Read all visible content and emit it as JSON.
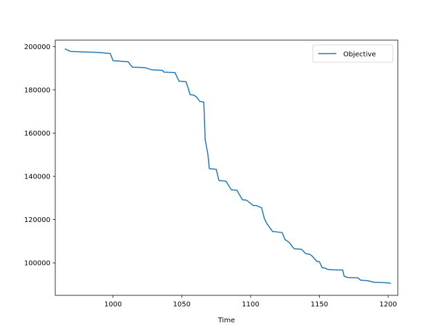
{
  "chart_data": {
    "type": "line",
    "title": "",
    "xlabel": "Time",
    "ylabel": "",
    "xlim": [
      958,
      1207
    ],
    "ylim": [
      85000,
      203000
    ],
    "xticks": [
      1000,
      1050,
      1100,
      1150,
      1200
    ],
    "yticks": [
      100000,
      120000,
      140000,
      160000,
      180000,
      200000
    ],
    "grid": false,
    "legend": "top-right",
    "series": [
      {
        "name": "Objective",
        "color": "#1f77b4",
        "x": [
          965,
          969,
          975,
          990,
          998,
          1000,
          1011,
          1014,
          1023,
          1028,
          1036,
          1037,
          1045,
          1048,
          1053,
          1055,
          1056,
          1059,
          1061,
          1063,
          1066,
          1067,
          1069,
          1070,
          1071,
          1075,
          1077,
          1082,
          1086,
          1090,
          1094,
          1097,
          1102,
          1104,
          1108,
          1110,
          1112,
          1116,
          1118,
          1123,
          1125,
          1128,
          1131,
          1132,
          1137,
          1140,
          1143,
          1145,
          1148,
          1150,
          1152,
          1154,
          1156,
          1160,
          1167,
          1168,
          1171,
          1178,
          1180,
          1185,
          1190,
          1197,
          1202
        ],
        "y": [
          199000,
          197800,
          197600,
          197300,
          196800,
          193500,
          193000,
          190500,
          190300,
          189300,
          189000,
          188200,
          188000,
          184000,
          183800,
          180000,
          177800,
          177500,
          176500,
          174700,
          174300,
          157000,
          150000,
          143600,
          143500,
          143300,
          138100,
          137800,
          133800,
          133600,
          129200,
          129000,
          126500,
          126500,
          125500,
          120500,
          118000,
          114500,
          114400,
          114000,
          110800,
          109500,
          107000,
          106500,
          106300,
          104300,
          104000,
          103000,
          100800,
          100500,
          97800,
          97600,
          97000,
          96800,
          96700,
          93800,
          93200,
          93100,
          92000,
          91800,
          91000,
          90900,
          90600
        ]
      }
    ]
  }
}
